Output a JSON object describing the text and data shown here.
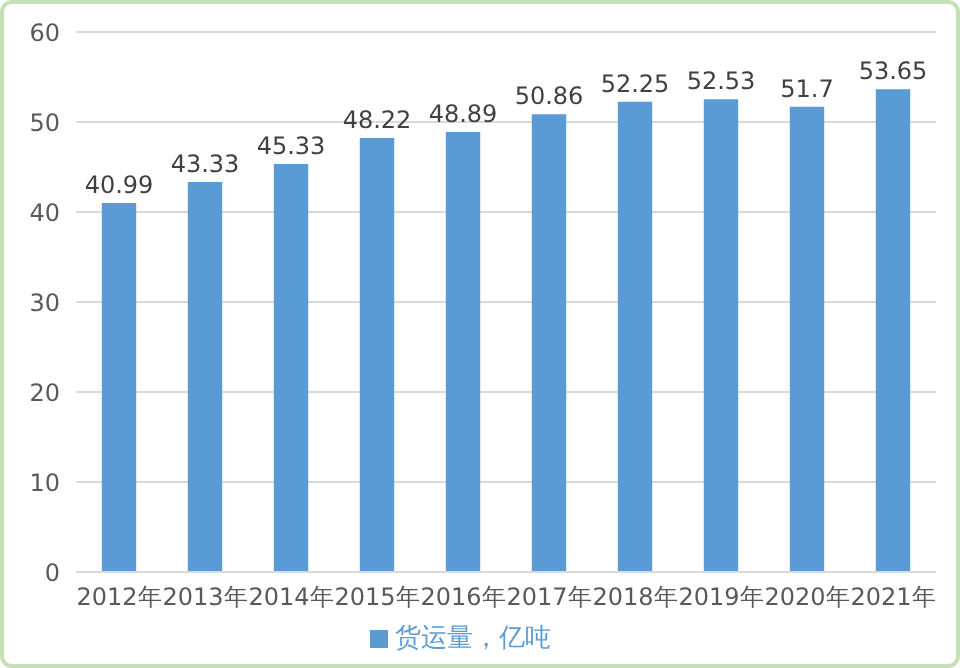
{
  "chart_data": {
    "type": "bar",
    "categories": [
      "2012年",
      "2013年",
      "2014年",
      "2015年",
      "2016年",
      "2017年",
      "2018年",
      "2019年",
      "2020年",
      "2021年"
    ],
    "series": [
      {
        "name": "货运量，亿吨",
        "color": "#5b9bd5",
        "values": [
          40.99,
          43.33,
          45.33,
          48.22,
          48.89,
          50.86,
          52.25,
          52.53,
          51.7,
          53.65
        ]
      }
    ],
    "ylim": [
      0,
      60
    ],
    "yticks": [
      0,
      10,
      20,
      30,
      40,
      50,
      60
    ],
    "grid": "y",
    "legend": "bottom",
    "data_labels": true
  }
}
